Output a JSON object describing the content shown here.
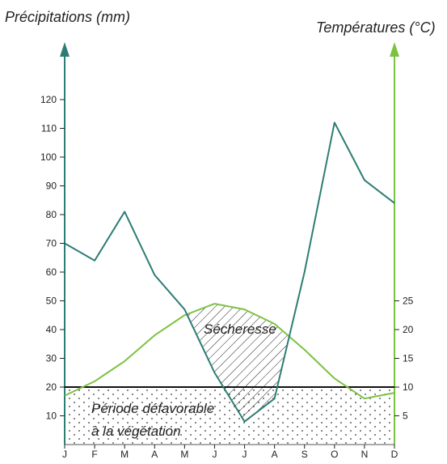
{
  "chart_data": {
    "type": "line",
    "title": "",
    "left_axis": {
      "label": "Précipitations (mm)",
      "ylim": [
        0,
        130
      ],
      "ticks": [
        10,
        20,
        30,
        40,
        50,
        60,
        70,
        80,
        90,
        100,
        110,
        120
      ]
    },
    "right_axis": {
      "label": "Températures (°C)",
      "ylim": [
        0,
        25
      ],
      "ticks": [
        5,
        10,
        15,
        20,
        25
      ]
    },
    "categories": [
      "J",
      "F",
      "M",
      "A",
      "M",
      "J",
      "J",
      "A",
      "S",
      "O",
      "N",
      "D"
    ],
    "series": [
      {
        "axis": "left",
        "color": "#2e7d74",
        "values": [
          70,
          64,
          81,
          59,
          47,
          25,
          8,
          16,
          60,
          112,
          92,
          84
        ]
      },
      {
        "axis": "right",
        "color": "#7cc242",
        "values": [
          8.5,
          11,
          14.5,
          19,
          22.5,
          24.5,
          23.5,
          21,
          16.5,
          11.5,
          8,
          9
        ]
      }
    ],
    "threshold": {
      "axis": "left",
      "value": 20
    },
    "annotations": {
      "drought": "Sécheresse",
      "unfavorable_line1": "Période défavorable",
      "unfavorable_line2": "à la végétation"
    },
    "colors": {
      "precip": "#2e7d74",
      "temp": "#7cc242",
      "threshold": "#111111"
    }
  }
}
